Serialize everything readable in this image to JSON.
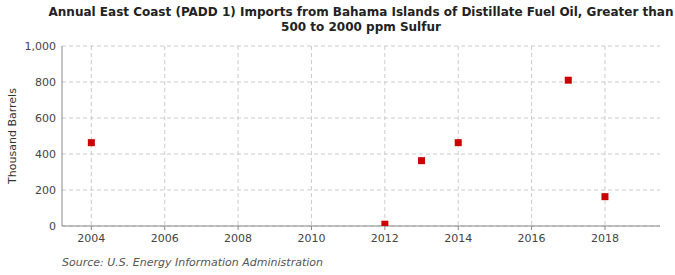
{
  "chart_data": {
    "type": "scatter",
    "title": "Annual East Coast (PADD 1) Imports from Bahama Islands of Distillate Fuel Oil, Greater than\n500 to 2000 ppm Sulfur",
    "y_label": "Thousand Barrels",
    "source": "Source: U.S. Energy Information Administration",
    "x": [
      2004,
      2012,
      2013,
      2014,
      2017,
      2018
    ],
    "values": [
      463,
      10,
      363,
      463,
      810,
      163
    ],
    "color": "#cc0000",
    "marker": "square",
    "xlim": [
      2003.2,
      2019.5
    ],
    "xticks": [
      2004,
      2006,
      2008,
      2010,
      2012,
      2014,
      2016,
      2018
    ],
    "ylim": [
      0,
      1000
    ],
    "yticks": [
      0,
      200,
      400,
      600,
      800,
      {
        "value": 1000,
        "label": "1,000"
      }
    ],
    "grid": true
  }
}
